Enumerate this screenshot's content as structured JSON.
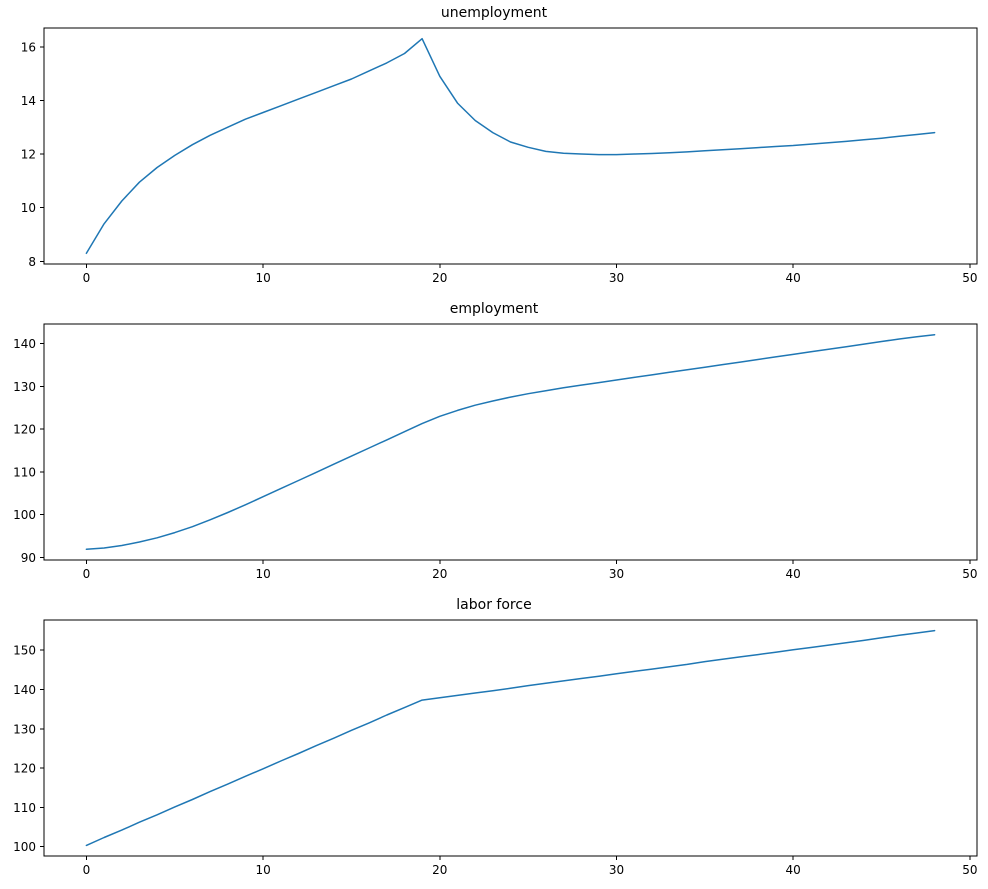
{
  "figure": {
    "background_color": "#ffffff",
    "axes_color": "#000000"
  },
  "chart_data": [
    {
      "type": "line",
      "title": "unemployment",
      "xlabel": "",
      "ylabel": "",
      "line_color": "#1f77b4",
      "grid": false,
      "legend": "none",
      "xlim": [
        -2.4,
        50.4
      ],
      "ylim": [
        7.9,
        16.7
      ],
      "xticks": [
        0,
        10,
        20,
        30,
        40,
        50
      ],
      "yticks": [
        8,
        10,
        12,
        14,
        16
      ],
      "x": [
        0,
        1,
        2,
        3,
        4,
        5,
        6,
        7,
        8,
        9,
        10,
        11,
        12,
        13,
        14,
        15,
        16,
        17,
        18,
        19,
        20,
        21,
        22,
        23,
        24,
        25,
        26,
        27,
        28,
        29,
        30,
        31,
        32,
        33,
        34,
        35,
        36,
        37,
        38,
        39,
        40,
        41,
        42,
        43,
        44,
        45,
        46,
        47,
        48
      ],
      "y": [
        8.3,
        9.4,
        10.25,
        10.95,
        11.5,
        11.95,
        12.35,
        12.7,
        13.0,
        13.3,
        13.55,
        13.8,
        14.05,
        14.3,
        14.55,
        14.8,
        15.1,
        15.4,
        15.75,
        16.3,
        14.9,
        13.9,
        13.25,
        12.8,
        12.45,
        12.25,
        12.1,
        12.03,
        12.0,
        11.98,
        11.98,
        12.0,
        12.02,
        12.05,
        12.08,
        12.12,
        12.16,
        12.2,
        12.24,
        12.28,
        12.32,
        12.37,
        12.42,
        12.47,
        12.53,
        12.59,
        12.66,
        12.73,
        12.8
      ]
    },
    {
      "type": "line",
      "title": "employment",
      "xlabel": "",
      "ylabel": "",
      "line_color": "#1f77b4",
      "grid": false,
      "legend": "none",
      "xlim": [
        -2.4,
        50.4
      ],
      "ylim": [
        89.4,
        144.6
      ],
      "xticks": [
        0,
        10,
        20,
        30,
        40,
        50
      ],
      "yticks": [
        90,
        100,
        110,
        120,
        130,
        140
      ],
      "x": [
        0,
        1,
        2,
        3,
        4,
        5,
        6,
        7,
        8,
        9,
        10,
        11,
        12,
        13,
        14,
        15,
        16,
        17,
        18,
        19,
        20,
        21,
        22,
        23,
        24,
        25,
        26,
        27,
        28,
        29,
        30,
        31,
        32,
        33,
        34,
        35,
        36,
        37,
        38,
        39,
        40,
        41,
        42,
        43,
        44,
        45,
        46,
        47,
        48
      ],
      "y": [
        91.9,
        92.2,
        92.8,
        93.6,
        94.6,
        95.8,
        97.2,
        98.8,
        100.5,
        102.3,
        104.2,
        106.1,
        108.0,
        109.9,
        111.8,
        113.7,
        115.6,
        117.5,
        119.4,
        121.3,
        123.0,
        124.4,
        125.6,
        126.6,
        127.5,
        128.3,
        129.0,
        129.7,
        130.3,
        130.9,
        131.5,
        132.1,
        132.7,
        133.3,
        133.9,
        134.5,
        135.1,
        135.7,
        136.3,
        136.9,
        137.5,
        138.1,
        138.7,
        139.3,
        139.9,
        140.5,
        141.1,
        141.6,
        142.1
      ]
    },
    {
      "type": "line",
      "title": "labor force",
      "xlabel": "",
      "ylabel": "",
      "line_color": "#1f77b4",
      "grid": false,
      "legend": "none",
      "xlim": [
        -2.4,
        50.4
      ],
      "ylim": [
        97.6,
        157.7
      ],
      "xticks": [
        0,
        10,
        20,
        30,
        40,
        50
      ],
      "yticks": [
        100,
        110,
        120,
        130,
        140,
        150
      ],
      "x": [
        0,
        1,
        2,
        3,
        4,
        5,
        6,
        7,
        8,
        9,
        10,
        11,
        12,
        13,
        14,
        15,
        16,
        17,
        18,
        19,
        20,
        21,
        22,
        23,
        24,
        25,
        26,
        27,
        28,
        29,
        30,
        31,
        32,
        33,
        34,
        35,
        36,
        37,
        38,
        39,
        40,
        41,
        42,
        43,
        44,
        45,
        46,
        47,
        48
      ],
      "y": [
        100.3,
        102.3,
        104.2,
        106.2,
        108.1,
        110.1,
        112.0,
        114.0,
        115.9,
        117.9,
        119.8,
        121.8,
        123.7,
        125.7,
        127.6,
        129.6,
        131.5,
        133.5,
        135.4,
        137.3,
        137.9,
        138.5,
        139.1,
        139.7,
        140.3,
        141.0,
        141.6,
        142.2,
        142.8,
        143.4,
        144.0,
        144.6,
        145.2,
        145.8,
        146.4,
        147.1,
        147.7,
        148.3,
        148.9,
        149.5,
        150.1,
        150.7,
        151.3,
        151.9,
        152.5,
        153.2,
        153.8,
        154.4,
        155.0
      ]
    }
  ]
}
